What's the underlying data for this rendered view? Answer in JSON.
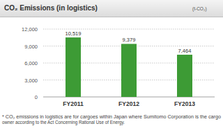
{
  "chart_data": {
    "type": "bar",
    "title": "CO₂ Emissions (in logistics)",
    "ylabel": "(t-CO₂)",
    "categories": [
      "FY2011",
      "FY2012",
      "FY2013"
    ],
    "values": [
      10519,
      9379,
      7464
    ],
    "value_labels": [
      "10,519",
      "9,379",
      "7,464"
    ],
    "color": "#3d9b35",
    "ylim": [
      0,
      12000
    ],
    "yticks": [
      0,
      {
        "value": 3000,
        "label": "3,000"
      },
      {
        "value": 6000,
        "label": "6,000"
      },
      {
        "value": 9000,
        "label": "9,000"
      },
      {
        "value": 12000,
        "label": "12,000"
      }
    ],
    "grid": true,
    "data_labels": true,
    "annotations": [
      "* CO₂ emissions in logistics are for cargoes within Japan where Sumitomo Corporation is the cargo",
      "owner according to the Act Concerning Rational Use of Energy."
    ]
  }
}
